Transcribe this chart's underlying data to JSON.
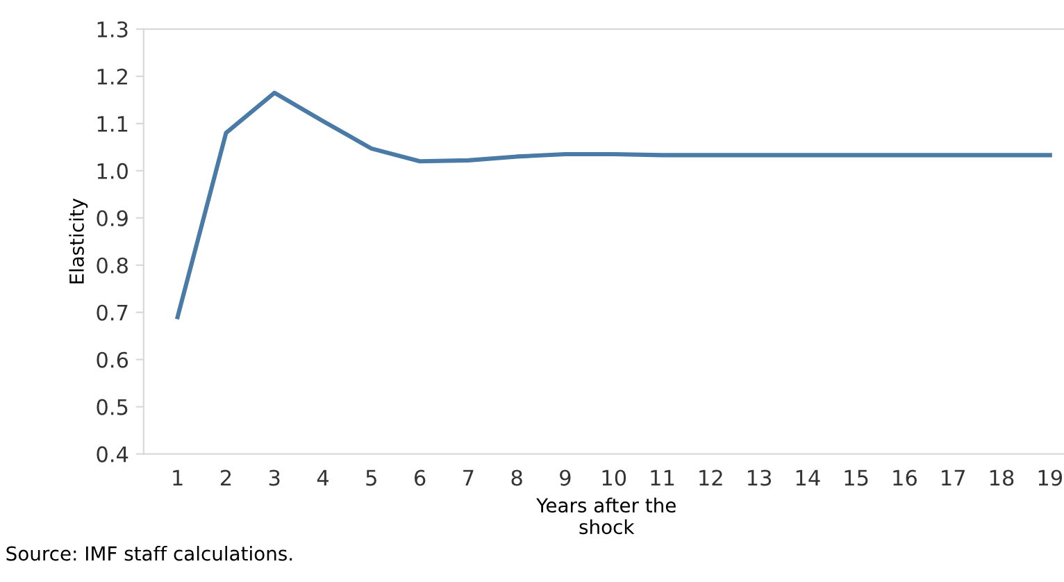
{
  "chart_data": {
    "type": "line",
    "ylabel": "Elasticity",
    "xlabel": "Years after the\nshock",
    "categories": [
      "1",
      "2",
      "3",
      "4",
      "5",
      "6",
      "7",
      "8",
      "9",
      "10",
      "11",
      "12",
      "13",
      "14",
      "15",
      "16",
      "17",
      "18",
      "19"
    ],
    "series": [
      {
        "color": "#4a7ba7",
        "values": [
          0.69,
          1.08,
          1.165,
          1.105,
          1.047,
          1.02,
          1.022,
          1.03,
          1.035,
          1.035,
          1.033,
          1.033,
          1.033,
          1.033,
          1.033,
          1.033,
          1.033,
          1.033,
          1.033
        ]
      }
    ],
    "ylim": [
      0.4,
      1.3
    ],
    "yticks": [
      {
        "value": 0.4,
        "label": "0.4"
      },
      {
        "value": 0.5,
        "label": "0.5"
      },
      {
        "value": 0.6,
        "label": "0.6"
      },
      {
        "value": 0.7,
        "label": "0.7"
      },
      {
        "value": 0.8,
        "label": "0.8"
      },
      {
        "value": 0.9,
        "label": "0.9"
      },
      {
        "value": 1.0,
        "label": "1.0"
      },
      {
        "value": 1.1,
        "label": "1.1"
      },
      {
        "value": 1.2,
        "label": "1.2"
      },
      {
        "value": 1.3,
        "label": "1.3"
      }
    ],
    "grid": false,
    "legend": false,
    "marker": "none",
    "line_style": "solid",
    "annotations": [
      "Source: IMF staff calculations."
    ]
  }
}
